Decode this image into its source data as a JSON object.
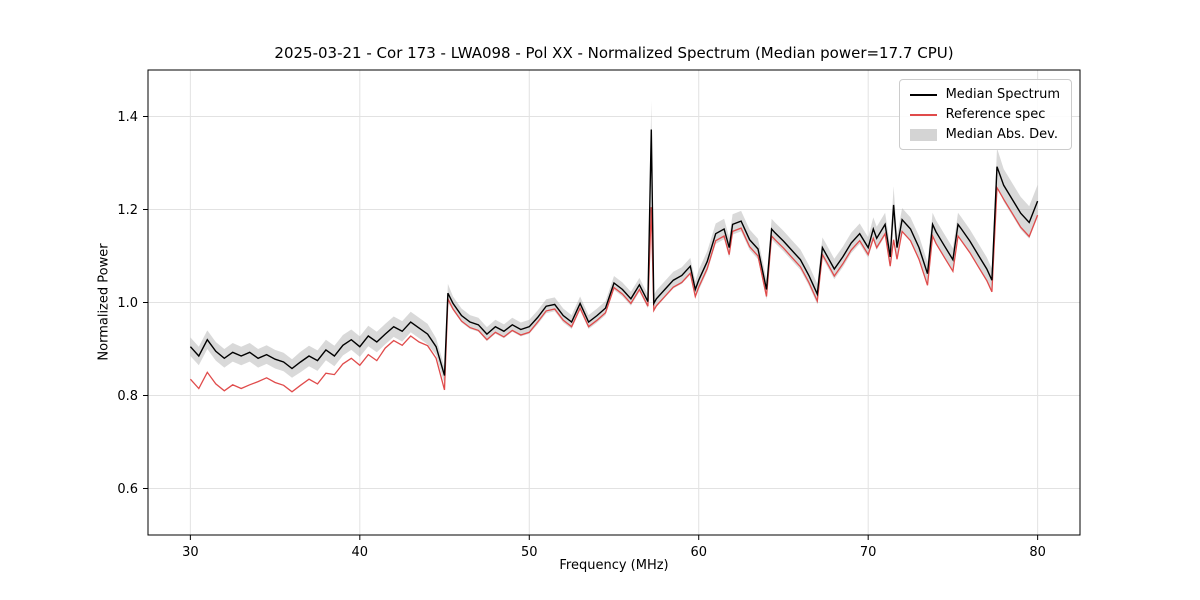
{
  "chart_data": {
    "type": "line",
    "title": "2025-03-21 - Cor 173 - LWA098 - Pol XX - Normalized Spectrum (Median power=17.7 CPU)",
    "xlabel": "Frequency (MHz)",
    "ylabel": "Normalized Power",
    "xlim": [
      27.5,
      82.5
    ],
    "ylim": [
      0.5,
      1.5
    ],
    "grid": true,
    "xticks": [
      {
        "v": 30,
        "label": "30"
      },
      {
        "v": 40,
        "label": "40"
      },
      {
        "v": 50,
        "label": "50"
      },
      {
        "v": 60,
        "label": "60"
      },
      {
        "v": 70,
        "label": "70"
      },
      {
        "v": 80,
        "label": "80"
      }
    ],
    "yticks": [
      {
        "v": 0.6,
        "label": "0.6"
      },
      {
        "v": 0.8,
        "label": "0.8"
      },
      {
        "v": 1.0,
        "label": "1.0"
      },
      {
        "v": 1.2,
        "label": "1.2"
      },
      {
        "v": 1.4,
        "label": "1.4"
      }
    ],
    "colors": {
      "median": "#000000",
      "reference": "#e04b4b",
      "band": "#aaaaaa",
      "grid": "#e2e2e2",
      "spine": "#000000"
    },
    "legend": {
      "position": "upper right",
      "items": [
        {
          "label": "Median Spectrum",
          "color": "#000000",
          "type": "line"
        },
        {
          "label": "Reference spec",
          "color": "#e04b4b",
          "type": "line"
        },
        {
          "label": "Median Abs. Dev.",
          "color": "#b0b0b0",
          "type": "patch"
        }
      ]
    },
    "x": [
      30,
      30.5,
      31,
      31.5,
      32,
      32.5,
      33,
      33.5,
      34,
      34.5,
      35,
      35.5,
      36,
      36.5,
      37,
      37.5,
      38,
      38.5,
      39,
      39.5,
      40,
      40.5,
      41,
      41.5,
      42,
      42.5,
      43,
      43.5,
      44,
      44.5,
      45,
      45.2,
      45.5,
      46,
      46.5,
      47,
      47.5,
      48,
      48.5,
      49,
      49.5,
      50,
      50.5,
      51,
      51.5,
      52,
      52.5,
      53,
      53.5,
      54,
      54.5,
      55,
      55.5,
      56,
      56.5,
      57,
      57.2,
      57.35,
      57.5,
      58,
      58.5,
      59,
      59.5,
      59.8,
      60,
      60.5,
      61,
      61.5,
      61.8,
      62,
      62.5,
      63,
      63.5,
      64,
      64.3,
      64.5,
      65,
      65.5,
      66,
      66.5,
      67,
      67.3,
      67.5,
      68,
      68.5,
      69,
      69.5,
      70,
      70.3,
      70.5,
      71,
      71.3,
      71.5,
      71.7,
      72,
      72.5,
      73,
      73.5,
      73.8,
      74,
      74.5,
      75,
      75.3,
      75.5,
      76,
      76.5,
      77,
      77.3,
      77.6,
      78,
      78.5,
      79,
      79.5,
      80
    ],
    "series": [
      {
        "name": "Median Spectrum",
        "values": [
          0.905,
          0.885,
          0.92,
          0.895,
          0.88,
          0.893,
          0.885,
          0.893,
          0.88,
          0.888,
          0.878,
          0.872,
          0.858,
          0.872,
          0.885,
          0.875,
          0.898,
          0.885,
          0.908,
          0.92,
          0.905,
          0.928,
          0.915,
          0.932,
          0.948,
          0.938,
          0.958,
          0.945,
          0.932,
          0.905,
          0.843,
          1.02,
          0.998,
          0.972,
          0.958,
          0.952,
          0.932,
          0.948,
          0.938,
          0.952,
          0.942,
          0.948,
          0.968,
          0.992,
          0.996,
          0.972,
          0.958,
          0.998,
          0.958,
          0.972,
          0.988,
          1.042,
          1.028,
          1.008,
          1.038,
          1.002,
          1.372,
          0.998,
          1.008,
          1.028,
          1.048,
          1.058,
          1.078,
          1.028,
          1.048,
          1.088,
          1.148,
          1.158,
          1.118,
          1.168,
          1.175,
          1.135,
          1.115,
          1.028,
          1.158,
          1.15,
          1.132,
          1.112,
          1.092,
          1.058,
          1.018,
          1.118,
          1.105,
          1.072,
          1.098,
          1.128,
          1.148,
          1.118,
          1.158,
          1.138,
          1.168,
          1.098,
          1.21,
          1.118,
          1.178,
          1.158,
          1.118,
          1.062,
          1.168,
          1.152,
          1.122,
          1.092,
          1.168,
          1.158,
          1.132,
          1.102,
          1.072,
          1.048,
          1.292,
          1.252,
          1.222,
          1.192,
          1.172,
          1.218
        ]
      },
      {
        "name": "Reference spec",
        "values": [
          0.835,
          0.815,
          0.85,
          0.825,
          0.81,
          0.823,
          0.815,
          0.823,
          0.83,
          0.838,
          0.828,
          0.822,
          0.808,
          0.822,
          0.835,
          0.825,
          0.848,
          0.845,
          0.868,
          0.88,
          0.865,
          0.888,
          0.875,
          0.902,
          0.918,
          0.908,
          0.928,
          0.915,
          0.907,
          0.88,
          0.812,
          1.008,
          0.986,
          0.96,
          0.946,
          0.94,
          0.92,
          0.936,
          0.926,
          0.94,
          0.93,
          0.936,
          0.958,
          0.982,
          0.986,
          0.962,
          0.948,
          0.988,
          0.948,
          0.962,
          0.978,
          1.032,
          1.018,
          0.998,
          1.028,
          0.992,
          1.205,
          0.983,
          0.993,
          1.013,
          1.033,
          1.043,
          1.063,
          1.013,
          1.033,
          1.073,
          1.133,
          1.143,
          1.103,
          1.153,
          1.16,
          1.12,
          1.1,
          1.013,
          1.143,
          1.135,
          1.117,
          1.097,
          1.077,
          1.043,
          1.003,
          1.103,
          1.09,
          1.057,
          1.083,
          1.113,
          1.133,
          1.103,
          1.138,
          1.118,
          1.148,
          1.078,
          1.135,
          1.093,
          1.153,
          1.133,
          1.093,
          1.037,
          1.143,
          1.127,
          1.097,
          1.067,
          1.143,
          1.133,
          1.107,
          1.077,
          1.047,
          1.023,
          1.247,
          1.222,
          1.192,
          1.162,
          1.142,
          1.188
        ]
      },
      {
        "name": "Median Abs. Dev. half-width",
        "values": [
          0.02,
          0.02,
          0.02,
          0.02,
          0.02,
          0.02,
          0.02,
          0.02,
          0.02,
          0.02,
          0.02,
          0.02,
          0.02,
          0.022,
          0.022,
          0.022,
          0.022,
          0.022,
          0.022,
          0.022,
          0.022,
          0.022,
          0.022,
          0.022,
          0.022,
          0.022,
          0.022,
          0.022,
          0.022,
          0.018,
          0.018,
          0.02,
          0.015,
          0.015,
          0.015,
          0.015,
          0.015,
          0.015,
          0.015,
          0.015,
          0.015,
          0.015,
          0.015,
          0.015,
          0.015,
          0.015,
          0.015,
          0.015,
          0.015,
          0.015,
          0.015,
          0.015,
          0.015,
          0.015,
          0.015,
          0.015,
          0.062,
          0.018,
          0.018,
          0.018,
          0.018,
          0.018,
          0.018,
          0.018,
          0.022,
          0.022,
          0.022,
          0.022,
          0.022,
          0.022,
          0.022,
          0.022,
          0.022,
          0.022,
          0.022,
          0.022,
          0.022,
          0.022,
          0.022,
          0.022,
          0.022,
          0.022,
          0.022,
          0.022,
          0.022,
          0.022,
          0.022,
          0.022,
          0.025,
          0.025,
          0.025,
          0.025,
          0.04,
          0.025,
          0.025,
          0.025,
          0.025,
          0.025,
          0.025,
          0.025,
          0.025,
          0.025,
          0.025,
          0.025,
          0.025,
          0.025,
          0.025,
          0.025,
          0.04,
          0.035,
          0.035,
          0.035,
          0.035,
          0.035
        ]
      }
    ]
  }
}
